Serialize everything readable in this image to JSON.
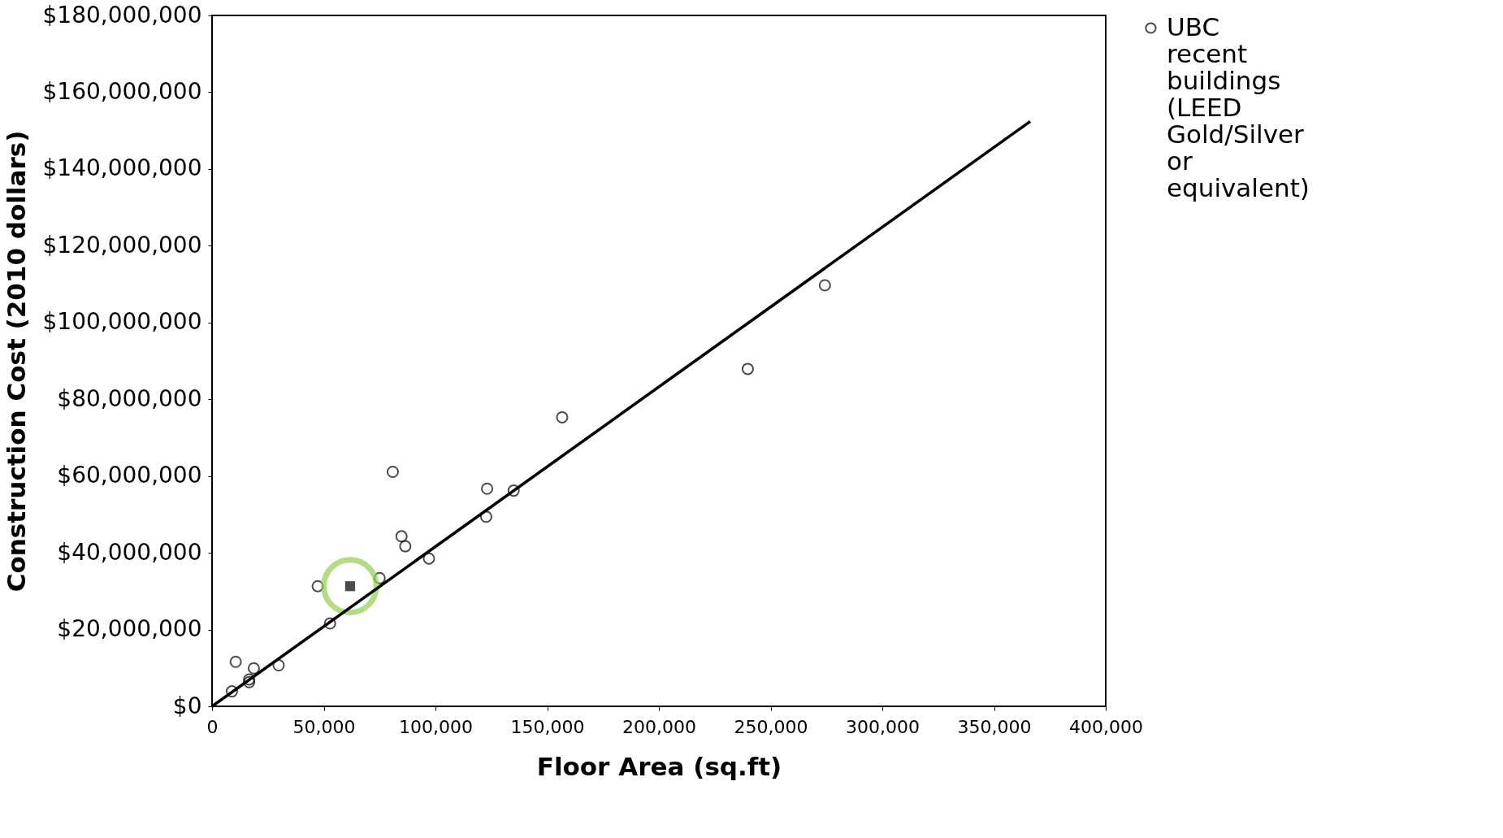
{
  "chart_data": {
    "type": "scatter",
    "xlabel": "Floor Area (sq.ft)",
    "ylabel": "Construction Cost (2010 dollars)",
    "xlim": [
      0,
      400000
    ],
    "ylim": [
      0,
      180000000
    ],
    "xticks": [
      0,
      {
        "value": 50000,
        "label": "50,000"
      },
      {
        "value": 100000,
        "label": "100,000"
      },
      {
        "value": 150000,
        "label": "150,000"
      },
      {
        "value": 200000,
        "label": "200,000"
      },
      {
        "value": 250000,
        "label": "250,000"
      },
      {
        "value": 300000,
        "label": "300,000"
      },
      {
        "value": 350000,
        "label": "350,000"
      },
      {
        "value": 400000,
        "label": "400,000"
      }
    ],
    "yticks": [
      {
        "value": 0,
        "label": "$0"
      },
      {
        "value": 20000000,
        "label": "$20,000,000"
      },
      {
        "value": 40000000,
        "label": "$40,000,000"
      },
      {
        "value": 60000000,
        "label": "$60,000,000"
      },
      {
        "value": 80000000,
        "label": "$80,000,000"
      },
      {
        "value": 100000000,
        "label": "$100,000,000"
      },
      {
        "value": 120000000,
        "label": "$120,000,000"
      },
      {
        "value": 140000000,
        "label": "$140,000,000"
      },
      {
        "value": 160000000,
        "label": "$160,000,000"
      },
      {
        "value": 180000000,
        "label": "$180,000,000"
      }
    ],
    "grid": false,
    "legend": "right",
    "series": [
      {
        "name": "UBC recent buildings (LEED Gold/Silver or equivalent)",
        "type": "scatter",
        "marker": "circle",
        "color": "#000000",
        "x": [
          8900,
          10600,
          16600,
          16600,
          18700,
          29800,
          47300,
          52800,
          75000,
          80900,
          84800,
          86500,
          97100,
          122700,
          123100,
          135000,
          156700,
          239800,
          274300
        ],
        "values": [
          3900000,
          11600000,
          6300000,
          7000000,
          9900000,
          10700000,
          31300000,
          21600000,
          33400000,
          61100000,
          44300000,
          41700000,
          38500000,
          49400000,
          56700000,
          56200000,
          75300000,
          87900000,
          109700000
        ]
      },
      {
        "type": "scatter",
        "marker": "square",
        "color": "#000000",
        "x": [
          61800
        ],
        "values": [
          31300000
        ]
      },
      {
        "type": "line",
        "marker": "none",
        "line_style": "solid",
        "color": "#000000",
        "x": [
          0,
          366200
        ],
        "values": [
          0,
          152400000
        ]
      }
    ]
  }
}
